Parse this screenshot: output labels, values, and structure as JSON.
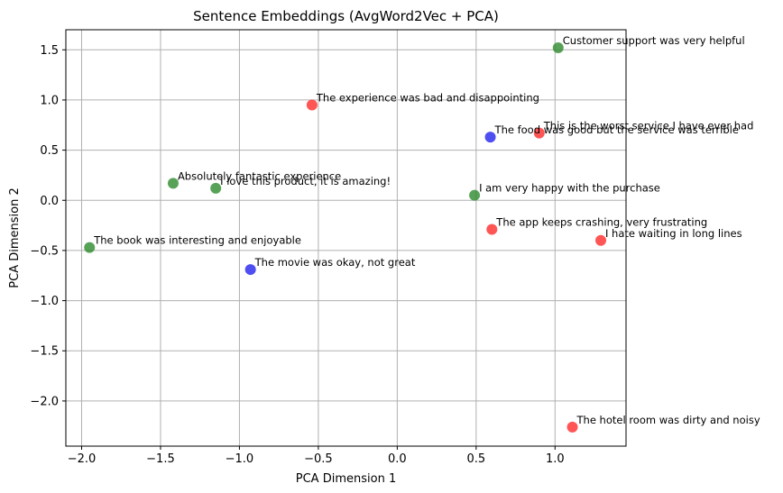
{
  "chart_data": {
    "type": "scatter",
    "title": "Sentence Embeddings (AvgWord2Vec + PCA)",
    "xlabel": "PCA Dimension 1",
    "ylabel": "PCA Dimension 2",
    "xlim": [
      -2.1,
      1.45
    ],
    "ylim": [
      -2.45,
      1.7
    ],
    "xticks": [
      -2.0,
      -1.5,
      -1.0,
      -0.5,
      0.0,
      0.5,
      1.0
    ],
    "xtick_labels": [
      "−2.0",
      "−1.5",
      "−1.0",
      "−0.5",
      "0.0",
      "0.5",
      "1.0"
    ],
    "yticks": [
      1.5,
      1.0,
      0.5,
      0.0,
      -0.5,
      -1.0,
      -1.5,
      -2.0
    ],
    "ytick_labels": [
      "1.5",
      "1.0",
      "0.5",
      "0.0",
      "−0.5",
      "−1.0",
      "−1.5",
      "−2.0"
    ],
    "grid": true,
    "colors": {
      "positive": "#2e8b2e",
      "negative": "#ff2a2a",
      "neutral": "#2222ee"
    },
    "points": [
      {
        "x": 1.02,
        "y": 1.52,
        "class": "positive",
        "label": "Customer support was very helpful"
      },
      {
        "x": -0.54,
        "y": 0.95,
        "class": "negative",
        "label": "The experience was bad and disappointing"
      },
      {
        "x": 0.9,
        "y": 0.67,
        "class": "negative",
        "label": "This is the worst service I have ever had"
      },
      {
        "x": 0.59,
        "y": 0.63,
        "class": "neutral",
        "label": "The food was good but the service was terrible"
      },
      {
        "x": -1.42,
        "y": 0.17,
        "class": "positive",
        "label": "Absolutely fantastic experience"
      },
      {
        "x": -1.15,
        "y": 0.12,
        "class": "positive",
        "label": "I love this product, it is amazing!"
      },
      {
        "x": 0.49,
        "y": 0.05,
        "class": "positive",
        "label": "I am very happy with the purchase"
      },
      {
        "x": 0.6,
        "y": -0.29,
        "class": "negative",
        "label": "The app keeps crashing, very frustrating"
      },
      {
        "x": 1.29,
        "y": -0.4,
        "class": "negative",
        "label": "I hate waiting in long lines"
      },
      {
        "x": -1.95,
        "y": -0.47,
        "class": "positive",
        "label": "The book was interesting and enjoyable"
      },
      {
        "x": -0.93,
        "y": -0.69,
        "class": "neutral",
        "label": "The movie was okay, not great"
      },
      {
        "x": 1.11,
        "y": -2.26,
        "class": "negative",
        "label": "The hotel room was dirty and noisy"
      }
    ]
  }
}
